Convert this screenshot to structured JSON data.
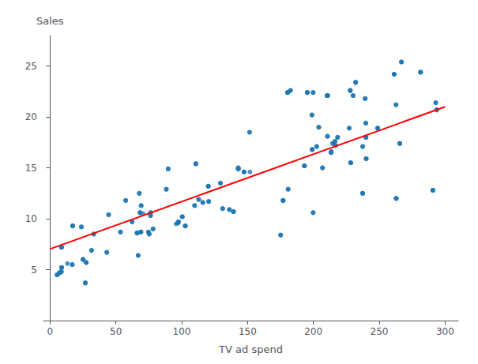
{
  "chart_data": {
    "type": "scatter",
    "xlabel": "TV ad spend",
    "ylabel": "Sales",
    "xlim": [
      -5,
      310
    ],
    "ylim": [
      0,
      28
    ],
    "xticks": [
      0,
      50,
      100,
      150,
      200,
      250,
      300
    ],
    "yticks": [
      5,
      10,
      15,
      20,
      25
    ],
    "grid": false,
    "series": [
      {
        "type": "scatter",
        "color": "#1f77b4",
        "x": [
          230.1,
          44.5,
          17.2,
          151.5,
          180.8,
          8.7,
          57.5,
          120.2,
          8.6,
          199.8,
          66.1,
          214.7,
          23.8,
          97.5,
          204.1,
          195.4,
          67.8,
          281.4,
          69.2,
          147.3,
          218.4,
          237.4,
          13.2,
          228.3,
          62.3,
          262.9,
          142.9,
          240.1,
          248.8,
          70.6,
          292.9,
          112.9,
          97.2,
          265.6,
          95.7,
          290.7,
          266.9,
          74.7,
          43.1,
          228.0,
          202.5,
          177.0,
          293.6,
          206.9,
          25.1,
          175.1,
          89.7,
          239.9,
          227.2,
          66.9,
          199.8,
          100.4,
          216.4,
          182.6,
          262.7,
          198.9,
          7.3,
          136.2,
          210.8,
          210.7,
          53.5,
          261.3,
          239.3,
          102.7,
          131.1,
          69.0,
          31.5,
          139.3,
          237.4,
          216.8,
          199.1,
          109.8,
          26.8,
          129.4,
          213.4,
          16.9,
          27.5,
          120.5,
          5.4,
          116.0,
          76.4,
          239.8,
          75.3,
          68.4,
          213.5,
          193.2,
          76.3,
          110.7,
          88.3,
          143.0,
          33.2,
          232.1,
          78.2,
          8.8,
          210.3,
          180.4,
          210.7,
          69.0,
          151.8,
          7.3,
          8.6,
          210.8,
          199.8,
          66.1,
          43.1,
          293.6,
          228.0,
          97.2,
          74.7,
          248.8,
          214.7,
          262.9,
          142.9,
          240.1,
          97.5,
          265.6,
          120.2,
          180.8,
          204.1,
          112.9,
          195.4,
          67.8,
          281.4,
          23.8,
          147.3,
          218.4,
          237.4,
          228.3,
          62.3,
          25.1,
          175.1,
          89.7,
          239.9,
          100.4,
          216.4,
          182.6,
          198.9,
          136.2,
          57.5,
          17.2,
          151.5,
          44.5,
          230.1,
          8.7,
          69.2,
          290.7,
          266.9,
          202.5,
          177.0,
          206.9,
          227.2,
          66.9,
          53.5,
          261.3,
          239.3,
          102.7,
          131.1,
          69.0,
          31.5,
          139.3,
          216.8,
          199.1,
          109.8,
          26.8,
          129.4,
          213.4,
          16.9,
          27.5,
          120.5,
          5.4,
          116.0,
          76.4,
          75.3,
          68.4,
          213.5,
          193.2,
          76.3,
          110.7,
          88.3,
          143.0,
          33.2,
          232.1,
          78.2,
          8.8,
          210.3,
          180.4,
          17.2,
          199.8,
          66.1,
          8.7,
          120.2,
          195.4,
          281.4,
          147.3,
          237.4,
          228.3,
          262.9,
          240.1,
          248.8,
          292.9,
          97.2,
          265.6,
          290.7,
          266.9,
          228.0,
          293.6,
          177.0,
          25.1,
          239.9,
          100.4,
          262.7,
          7.3,
          210.8,
          261.3,
          102.7,
          139.3,
          237.4,
          199.1,
          26.8,
          213.4,
          27.5,
          5.4,
          239.8,
          68.4,
          193.2,
          110.7,
          143.0,
          232.1,
          8.8,
          180.4
        ],
        "values": [
          22.1,
          10.4,
          9.3,
          18.5,
          12.9,
          7.2,
          11.8,
          13.2,
          4.8,
          10.6,
          8.6,
          17.4,
          9.2,
          9.7,
          19.0,
          22.4,
          12.5,
          24.4,
          11.3,
          14.6,
          18.0,
          12.5,
          5.6,
          15.5,
          9.7,
          12.0,
          15.0,
          15.9,
          18.9,
          10.5,
          21.4,
          11.9,
          9.6,
          17.4,
          9.5,
          12.8,
          25.4,
          8.7,
          6.7,
          22.6,
          17.1,
          11.8,
          20.7,
          15.0,
          6.0,
          8.4,
          14.9,
          18.0,
          18.9,
          6.4,
          22.4,
          10.2,
          17.6,
          22.6,
          21.2,
          20.2,
          4.7,
          10.9,
          22.1,
          18.1,
          8.7,
          24.2,
          21.8,
          9.3,
          11.0,
          8.7,
          6.9,
          10.7,
          17.1,
          17.2,
          16.8,
          11.3,
          3.7,
          13.5,
          16.5,
          5.5,
          5.7,
          11.7,
          4.5,
          11.6,
          10.6,
          19.4,
          8.5,
          10.6,
          16.6,
          15.2,
          10.3,
          15.4,
          12.9,
          14.9,
          8.5,
          23.4,
          9.0,
          5.2,
          22.1,
          22.4,
          18.1,
          8.7,
          14.6,
          4.7,
          4.8,
          22.1,
          22.4,
          8.6,
          6.7,
          20.7,
          22.6,
          9.6,
          8.7,
          18.9,
          17.4,
          12.0,
          15.0,
          15.9,
          9.7,
          17.4,
          13.2,
          12.9,
          19.0,
          11.9,
          22.4,
          12.5,
          24.4,
          9.2,
          14.6,
          18.0,
          12.5,
          15.5,
          9.7,
          6.0,
          8.4,
          14.9,
          18.0,
          10.2,
          17.6,
          22.6,
          20.2,
          10.9,
          11.8,
          9.3,
          18.5,
          10.4,
          22.1,
          7.2,
          11.3,
          12.8,
          25.4,
          17.1,
          11.8,
          15.0,
          18.9,
          6.4,
          8.7,
          24.2,
          21.8,
          9.3,
          11.0,
          8.7,
          6.9,
          10.7,
          17.2,
          16.8,
          11.3,
          3.7,
          13.5,
          16.5,
          5.5,
          5.7,
          11.7,
          4.5,
          11.6,
          10.6,
          8.5,
          10.6,
          16.6,
          15.2,
          10.3,
          15.4,
          12.9,
          14.9,
          8.5,
          23.4,
          9.0,
          5.2,
          22.1,
          22.4,
          9.3,
          10.6,
          8.6,
          7.2,
          13.2,
          22.4,
          24.4,
          14.6,
          12.5,
          15.5,
          12.0,
          15.9,
          18.9,
          21.4,
          9.6,
          17.4,
          12.8,
          25.4,
          22.6,
          20.7,
          11.8,
          6.0,
          18.0,
          10.2,
          21.2,
          4.7,
          22.1,
          24.2,
          9.3,
          10.7,
          17.1,
          16.8,
          3.7,
          16.5,
          5.7,
          4.5,
          19.4,
          10.6,
          15.2,
          15.4,
          14.9,
          23.4,
          5.2,
          22.4
        ]
      },
      {
        "type": "line",
        "color": "red",
        "x": [
          0,
          300
        ],
        "values": [
          7.03,
          21.0
        ]
      }
    ]
  }
}
